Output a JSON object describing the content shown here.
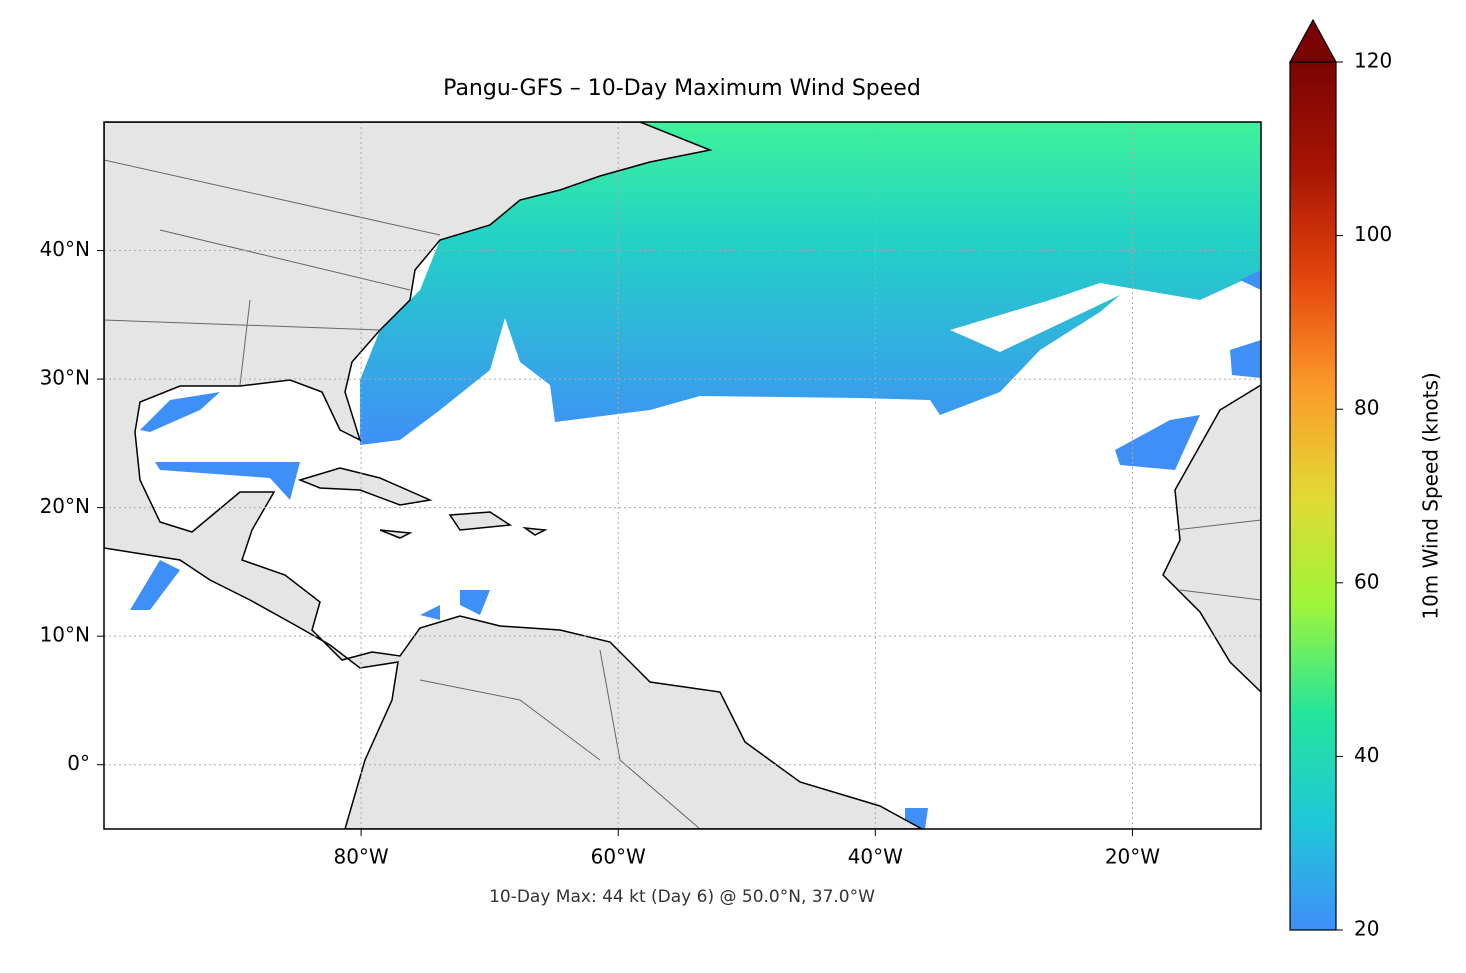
{
  "chart_data": {
    "type": "map",
    "title": "Pangu-GFS – 10-Day Maximum Wind Speed",
    "annotation": "10-Day Max: 44 kt (Day 6) @ 50.0°N, 37.0°W",
    "xlim": [
      -100,
      -10
    ],
    "ylim": [
      -5,
      50
    ],
    "xticks": [
      {
        "value": -80,
        "label": "80°W"
      },
      {
        "value": -60,
        "label": "60°W"
      },
      {
        "value": -40,
        "label": "40°W"
      },
      {
        "value": -20,
        "label": "20°W"
      }
    ],
    "yticks": [
      {
        "value": 0,
        "label": "0°"
      },
      {
        "value": 10,
        "label": "10°N"
      },
      {
        "value": 20,
        "label": "20°N"
      },
      {
        "value": 30,
        "label": "30°N"
      },
      {
        "value": 40,
        "label": "40°N"
      }
    ],
    "grid": true,
    "colorbar": {
      "label": "10m Wind Speed (knots)",
      "lim": [
        20,
        120
      ],
      "ticks": [
        20,
        40,
        60,
        80,
        100,
        120
      ],
      "colors": [
        "#3f8ff8",
        "#1fc8d8",
        "#24e59a",
        "#9ef53a",
        "#e2d933",
        "#fb9b2a",
        "#e4460d",
        "#a71504",
        "#7a0403"
      ]
    }
  }
}
